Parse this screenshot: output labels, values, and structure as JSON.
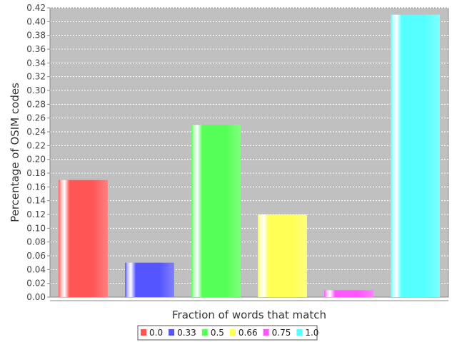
{
  "chart_data": {
    "type": "bar",
    "title": "",
    "xlabel": "Fraction of words that match",
    "ylabel": "Percentage of OSIM codes",
    "categories": [
      "0.0",
      "0.33",
      "0.5",
      "0.66",
      "0.75",
      "1.0"
    ],
    "values": [
      0.17,
      0.05,
      0.25,
      0.12,
      0.01,
      0.41
    ],
    "colors": [
      "#ff5555",
      "#5555ff",
      "#55ff55",
      "#ffff55",
      "#ff55ff",
      "#55ffff"
    ],
    "ylim": [
      0,
      0.42
    ],
    "yticks": [
      "0.00",
      "0.02",
      "0.04",
      "0.06",
      "0.08",
      "0.10",
      "0.12",
      "0.14",
      "0.16",
      "0.18",
      "0.20",
      "0.22",
      "0.24",
      "0.26",
      "0.28",
      "0.30",
      "0.32",
      "0.34",
      "0.36",
      "0.38",
      "0.40",
      "0.42"
    ],
    "grid": true,
    "legend": "bottom-center",
    "plot_background": "#c0c0c0"
  }
}
